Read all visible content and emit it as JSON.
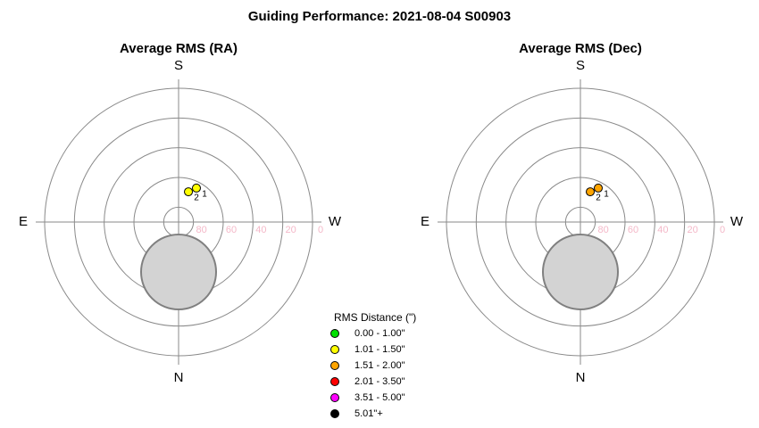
{
  "page_title": "Guiding Performance: 2021-08-04 S00903",
  "chart_data": [
    {
      "type": "polar",
      "title": "Average RMS (RA)",
      "directions": {
        "top": "S",
        "bottom": "N",
        "left": "E",
        "right": "W"
      },
      "rlim": [
        90,
        0
      ],
      "rticks": [
        80,
        60,
        40,
        20,
        0
      ],
      "points": [
        {
          "label": "1",
          "az": 207.7,
          "alt": 64.2,
          "color": "#ffff00"
        },
        {
          "label": "2",
          "az": 198,
          "alt": 68.6,
          "color": "#ffff00"
        }
      ],
      "shade": {
        "az": 0,
        "alt": 56.4,
        "radius": 25.2
      }
    },
    {
      "type": "polar",
      "title": "Average RMS (Dec)",
      "directions": {
        "top": "S",
        "bottom": "N",
        "left": "E",
        "right": "W"
      },
      "rlim": [
        90,
        0
      ],
      "rticks": [
        80,
        60,
        40,
        20,
        0
      ],
      "points": [
        {
          "label": "1",
          "az": 207.7,
          "alt": 64.2,
          "color": "#ffa500"
        },
        {
          "label": "2",
          "az": 198,
          "alt": 68.6,
          "color": "#ffa500"
        }
      ],
      "shade": {
        "az": 0,
        "alt": 56.4,
        "radius": 25.2
      }
    }
  ],
  "legend": {
    "title": "RMS Distance (\")",
    "entries": [
      {
        "label": "0.00 - 1.00\"",
        "color": "#00e000"
      },
      {
        "label": "1.01 - 1.50\"",
        "color": "#ffff00"
      },
      {
        "label": "1.51 - 2.00\"",
        "color": "#ffa500"
      },
      {
        "label": "2.01 - 3.50\"",
        "color": "#ff0000"
      },
      {
        "label": "3.51 - 5.00\"",
        "color": "#ff00ff"
      },
      {
        "label": "5.01\"+",
        "color": "#000000"
      }
    ]
  }
}
